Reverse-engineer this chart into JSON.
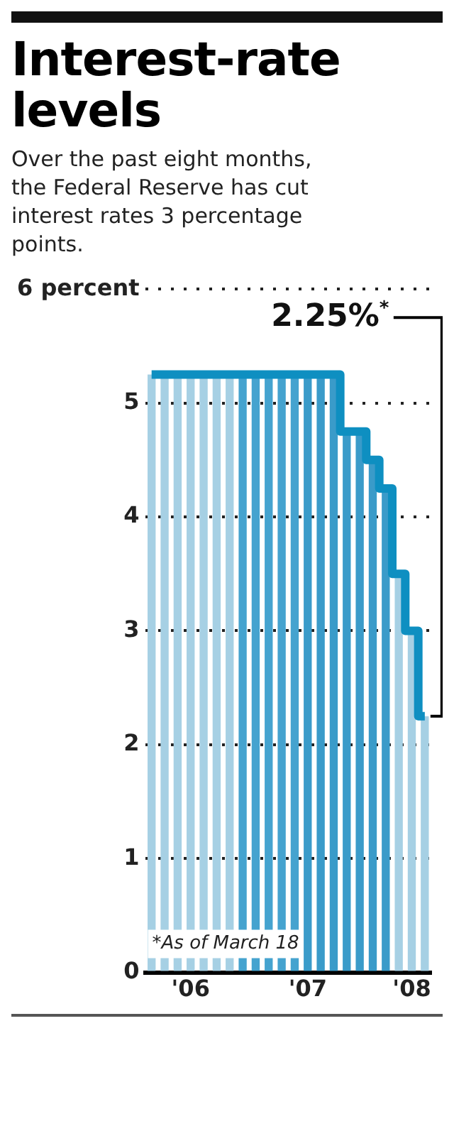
{
  "chart_data": {
    "type": "bar",
    "title": "Interest-rate levels",
    "subtitle": "Over the past eight months, the Federal Reserve has cut interest rates 3 percentage points.",
    "categories": [
      null,
      null,
      null,
      "'06",
      null,
      null,
      null,
      null,
      null,
      null,
      null,
      null,
      "'07",
      null,
      null,
      null,
      null,
      null,
      null,
      null,
      "'08",
      null
    ],
    "series": [
      {
        "colors": [
          "#a6d0e4",
          "#a6d0e4",
          "#a6d0e4",
          "#a6d0e4",
          "#a6d0e4",
          "#a6d0e4",
          "#a6d0e4",
          "#45a3cf",
          "#45a3cf",
          "#45a3cf",
          "#45a3cf",
          "#45a3cf",
          "#3a9bc9",
          "#3a9bc9",
          "#3a9bc9",
          "#3a9bc9",
          "#3a9bc9",
          "#3a9bc9",
          "#3a9bc9",
          "#a6d0e4",
          "#a6d0e4",
          "#a6d0e4"
        ],
        "values": [
          5.25,
          5.25,
          5.25,
          5.25,
          5.25,
          5.25,
          5.25,
          5.25,
          5.25,
          5.25,
          5.25,
          5.25,
          5.25,
          5.25,
          5.25,
          4.75,
          4.75,
          4.5,
          4.25,
          3.5,
          3.0,
          2.25
        ]
      },
      {
        "type": "step",
        "color": "#0e8fc1",
        "values": [
          5.25,
          5.25,
          5.25,
          5.25,
          5.25,
          5.25,
          5.25,
          5.25,
          5.25,
          5.25,
          5.25,
          5.25,
          5.25,
          5.25,
          5.25,
          4.75,
          4.75,
          4.5,
          4.25,
          3.5,
          3.0,
          2.25
        ]
      }
    ],
    "ylim": [
      0,
      6
    ],
    "yticks": [
      0,
      1,
      2,
      3,
      4,
      5,
      {
        "value": 6,
        "label": "6 percent"
      }
    ],
    "grid": "y",
    "annotations": [
      "2.25%*",
      "*As of March 18"
    ]
  }
}
